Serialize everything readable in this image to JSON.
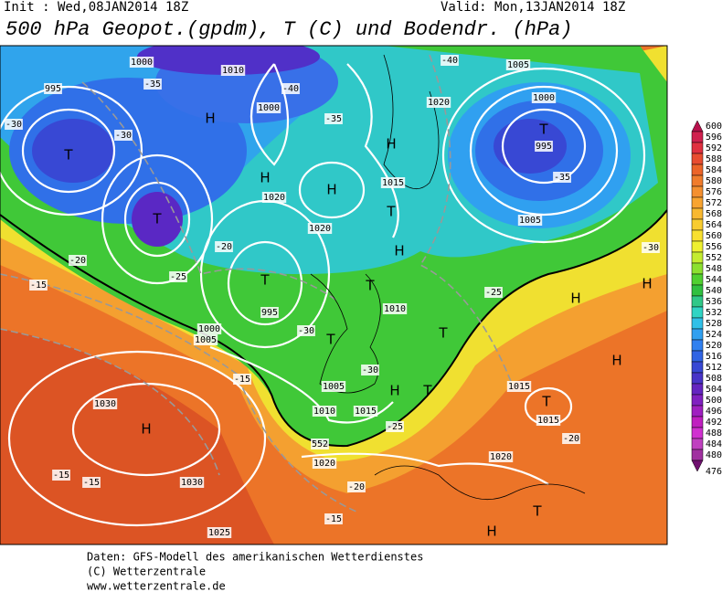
{
  "header": {
    "init": "Init : Wed,08JAN2014 18Z",
    "valid": "Valid: Mon,13JAN2014 18Z",
    "title": "500 hPa Geopot.(gpdm), T (C) und Bodendr. (hPa)"
  },
  "legend": {
    "items": [
      {
        "value": 600,
        "color": "#b8104c"
      },
      {
        "value": 596,
        "color": "#d0204e"
      },
      {
        "value": 592,
        "color": "#e03040"
      },
      {
        "value": 588,
        "color": "#e84c30"
      },
      {
        "value": 584,
        "color": "#ec6428"
      },
      {
        "value": 580,
        "color": "#f07c2c"
      },
      {
        "value": 576,
        "color": "#f49030"
      },
      {
        "value": 572,
        "color": "#f8a430"
      },
      {
        "value": 568,
        "color": "#f8b830"
      },
      {
        "value": 564,
        "color": "#f8cc30"
      },
      {
        "value": 560,
        "color": "#f8e030"
      },
      {
        "value": 556,
        "color": "#eef030"
      },
      {
        "value": 552,
        "color": "#c4ec30"
      },
      {
        "value": 548,
        "color": "#8ce030"
      },
      {
        "value": 544,
        "color": "#50d030"
      },
      {
        "value": 540,
        "color": "#30c040"
      },
      {
        "value": 536,
        "color": "#30c888"
      },
      {
        "value": 532,
        "color": "#30d4c4"
      },
      {
        "value": 528,
        "color": "#30c0e8"
      },
      {
        "value": 524,
        "color": "#30a0f0"
      },
      {
        "value": 520,
        "color": "#3080f0"
      },
      {
        "value": 516,
        "color": "#3064e4"
      },
      {
        "value": 512,
        "color": "#3848d4"
      },
      {
        "value": 508,
        "color": "#4834c8"
      },
      {
        "value": 504,
        "color": "#6424c0"
      },
      {
        "value": 500,
        "color": "#8020c0"
      },
      {
        "value": 496,
        "color": "#a020c0"
      },
      {
        "value": 492,
        "color": "#c020c0"
      },
      {
        "value": 488,
        "color": "#d030d0"
      },
      {
        "value": 484,
        "color": "#c040c0"
      },
      {
        "value": 480,
        "color": "#a030a0"
      },
      {
        "value": 476,
        "color": "#701070"
      }
    ]
  },
  "map": {
    "labels": [
      "H",
      "1030",
      "1030",
      "1025",
      "-15",
      "-15",
      "-15",
      "-15",
      "-15",
      "-20",
      "-20",
      "-20",
      "-20",
      "-25",
      "-25",
      "-25",
      "T",
      "T",
      "T",
      "T",
      "T",
      "T",
      "T",
      "T",
      "T",
      "T",
      "T",
      "H",
      "H",
      "H",
      "H",
      "H",
      "H",
      "H",
      "H",
      "H",
      "H",
      "995",
      "995",
      "995",
      "1000",
      "1000",
      "1000",
      "1000",
      "1005",
      "1005",
      "1005",
      "1005",
      "1010",
      "1010",
      "1010",
      "1015",
      "1015",
      "1015",
      "1015",
      "1020",
      "1020",
      "1020",
      "1020",
      "1020",
      "-30",
      "-30",
      "-30",
      "-30",
      "-30",
      "-35",
      "-35",
      "-35",
      "-40",
      "-40",
      "552"
    ]
  },
  "footer": {
    "lines": [
      "Daten: GFS-Modell des amerikanischen Wetterdienstes",
      "(C) Wetterzentrale",
      "www.wetterzentrale.de"
    ]
  }
}
